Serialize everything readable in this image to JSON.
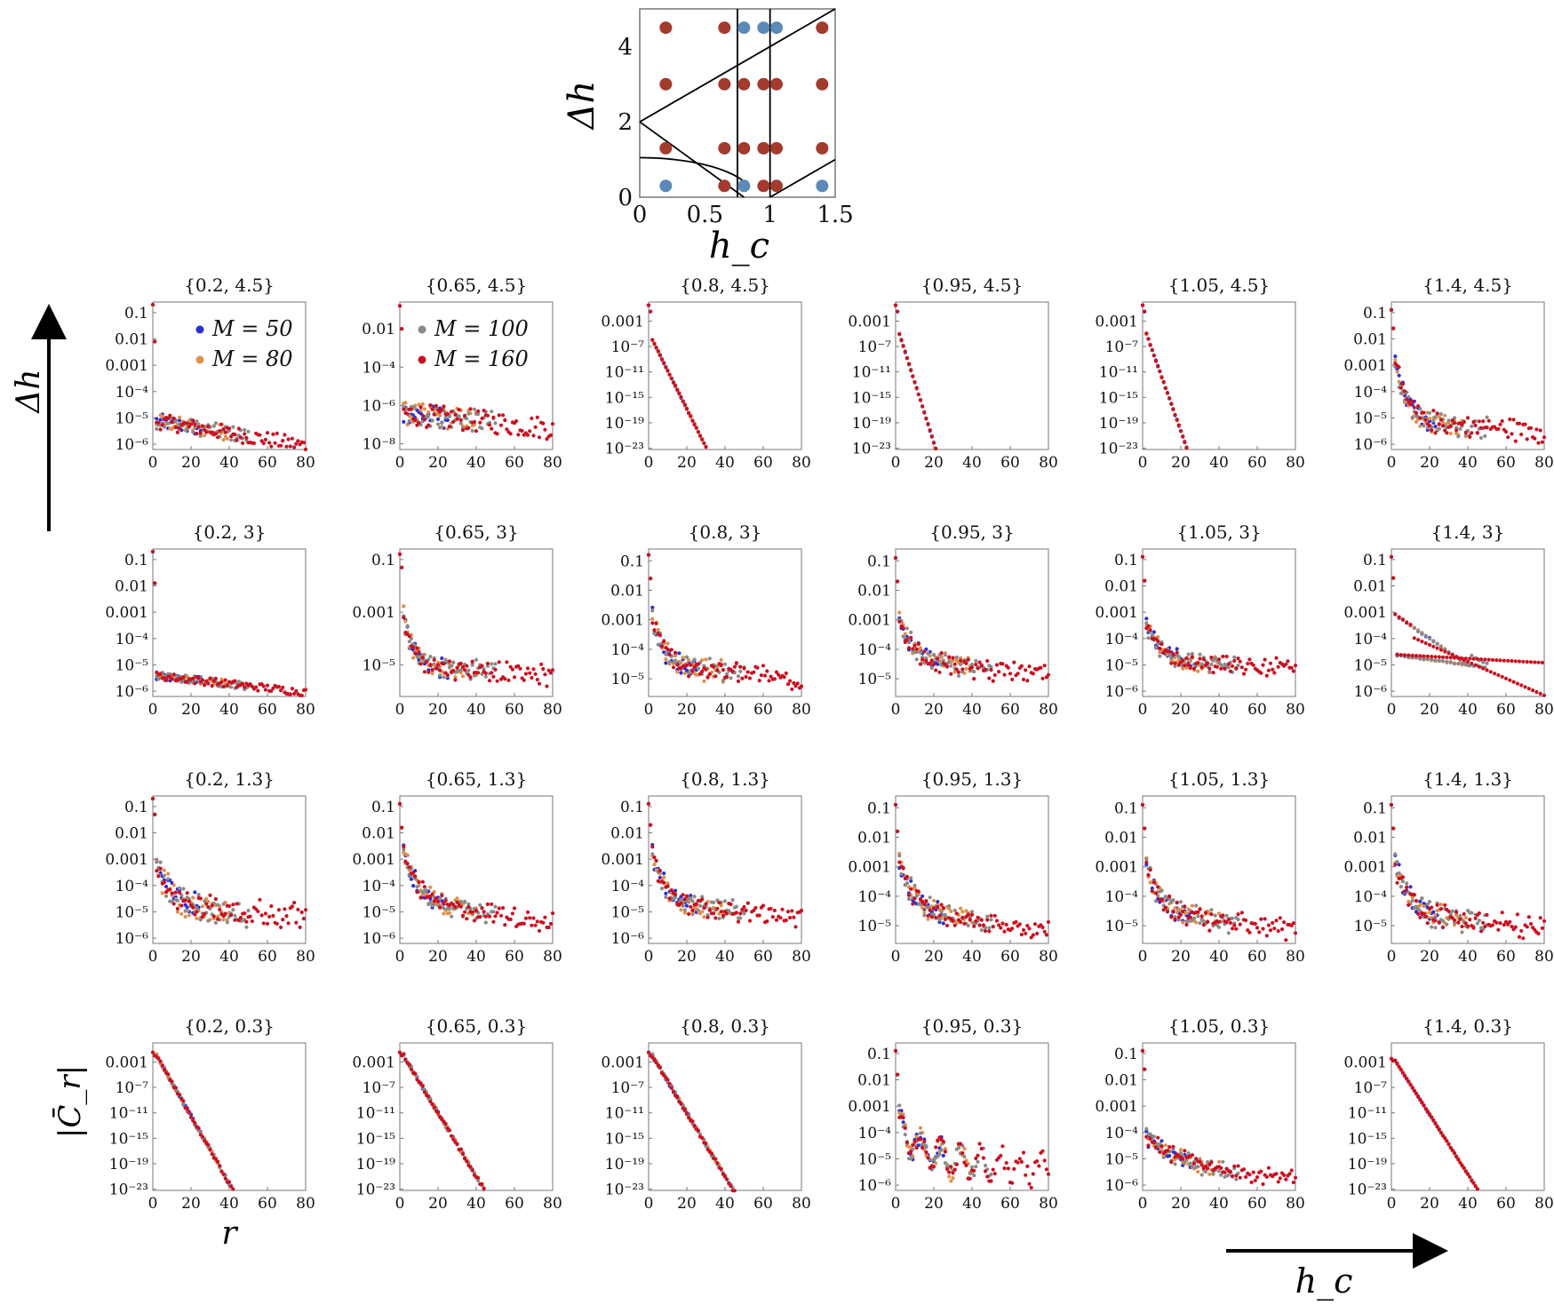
{
  "inset": {
    "xlabel": "h_c",
    "ylabel": "Δh",
    "x_ticks": [
      "0",
      "0.5",
      "1",
      "1.5"
    ],
    "y_ticks": [
      "0",
      "2",
      "4"
    ],
    "xlim": [
      0,
      1.5
    ],
    "ylim": [
      0,
      5
    ],
    "point_color_a": "#a33a2e",
    "point_color_b": "#5b89b8",
    "points": [
      {
        "hc": 0.2,
        "dh": 4.5,
        "c": "a"
      },
      {
        "hc": 0.65,
        "dh": 4.5,
        "c": "a"
      },
      {
        "hc": 0.8,
        "dh": 4.5,
        "c": "b"
      },
      {
        "hc": 0.95,
        "dh": 4.5,
        "c": "b"
      },
      {
        "hc": 1.05,
        "dh": 4.5,
        "c": "b"
      },
      {
        "hc": 1.4,
        "dh": 4.5,
        "c": "a"
      },
      {
        "hc": 0.2,
        "dh": 3,
        "c": "a"
      },
      {
        "hc": 0.65,
        "dh": 3,
        "c": "a"
      },
      {
        "hc": 0.8,
        "dh": 3,
        "c": "a"
      },
      {
        "hc": 0.95,
        "dh": 3,
        "c": "a"
      },
      {
        "hc": 1.05,
        "dh": 3,
        "c": "a"
      },
      {
        "hc": 1.4,
        "dh": 3,
        "c": "a"
      },
      {
        "hc": 0.2,
        "dh": 1.3,
        "c": "a"
      },
      {
        "hc": 0.65,
        "dh": 1.3,
        "c": "a"
      },
      {
        "hc": 0.8,
        "dh": 1.3,
        "c": "a"
      },
      {
        "hc": 0.95,
        "dh": 1.3,
        "c": "a"
      },
      {
        "hc": 1.05,
        "dh": 1.3,
        "c": "a"
      },
      {
        "hc": 1.4,
        "dh": 1.3,
        "c": "a"
      },
      {
        "hc": 0.2,
        "dh": 0.3,
        "c": "b"
      },
      {
        "hc": 0.65,
        "dh": 0.3,
        "c": "a"
      },
      {
        "hc": 0.8,
        "dh": 0.3,
        "c": "b"
      },
      {
        "hc": 0.95,
        "dh": 0.3,
        "c": "a"
      },
      {
        "hc": 1.05,
        "dh": 0.3,
        "c": "a"
      },
      {
        "hc": 1.4,
        "dh": 0.3,
        "c": "b"
      }
    ]
  },
  "labels": {
    "left_arrow": "Δh",
    "right_arrow": "h_c",
    "y_axis": "|C̄_r|",
    "x_axis": "r"
  },
  "legend": [
    {
      "label": "M = 50",
      "color": "#2a2fd6"
    },
    {
      "label": "M = 80",
      "color": "#e0904a"
    },
    {
      "label": "M = 100",
      "color": "#8a8a8a"
    },
    {
      "label": "M = 160",
      "color": "#cc1020"
    }
  ],
  "chart_data": {
    "type": "scatter",
    "x_ticks": [
      "0",
      "20",
      "40",
      "60",
      "80"
    ],
    "xlim": [
      0,
      80
    ],
    "series_names": [
      "M = 50",
      "M = 80",
      "M = 100",
      "M = 160"
    ],
    "rows": [
      [
        {
          "title": "{0.2, 4.5}",
          "ylim": [
            -6.2,
            -0.6
          ],
          "yticks": [
            [
              "0.1",
              -1
            ],
            [
              "0.01",
              -2
            ],
            [
              "0.001",
              -3
            ],
            [
              "10⁻⁴",
              -4
            ],
            [
              "10⁻⁵",
              -5
            ],
            [
              "10⁻⁶",
              -6
            ]
          ],
          "kind": "plateau",
          "a0": -0.7,
          "b0": -2.1,
          "c": -5.1,
          "tau": 0.8,
          "slope": -0.012,
          "noise": 0.3
        },
        {
          "title": "{0.65, 4.5}",
          "ylim": [
            -8.3,
            -0.6
          ],
          "yticks": [
            [
              "0.01",
              -2
            ],
            [
              "10⁻⁴",
              -4
            ],
            [
              "10⁻⁶",
              -6
            ],
            [
              "10⁻⁸",
              -8
            ]
          ],
          "kind": "plateau",
          "a0": -0.8,
          "b0": -2.0,
          "c": -6.4,
          "tau": 0.8,
          "slope": -0.01,
          "noise": 0.6
        },
        {
          "title": "{0.8, 4.5}",
          "ylim": [
            -23.2,
            0
          ],
          "yticks": [
            [
              "0.001",
              -3
            ],
            [
              "10⁻⁷",
              -7
            ],
            [
              "10⁻¹¹",
              -11
            ],
            [
              "10⁻¹⁵",
              -15
            ],
            [
              "10⁻¹⁹",
              -19
            ],
            [
              "10⁻²³",
              -23
            ]
          ],
          "kind": "exp",
          "a0": -0.5,
          "b0": -1.5,
          "start": -6.0,
          "slope": -0.6,
          "noise": 0.1
        },
        {
          "title": "{0.95, 4.5}",
          "ylim": [
            -23.2,
            0
          ],
          "yticks": [
            [
              "0.001",
              -3
            ],
            [
              "10⁻⁷",
              -7
            ],
            [
              "10⁻¹¹",
              -11
            ],
            [
              "10⁻¹⁵",
              -15
            ],
            [
              "10⁻¹⁹",
              -19
            ],
            [
              "10⁻²³",
              -23
            ]
          ],
          "kind": "exp",
          "a0": -0.5,
          "b0": -1.5,
          "start": -5.0,
          "slope": -0.95,
          "noise": 0.1
        },
        {
          "title": "{1.05, 4.5}",
          "ylim": [
            -23.2,
            0
          ],
          "yticks": [
            [
              "0.001",
              -3
            ],
            [
              "10⁻⁷",
              -7
            ],
            [
              "10⁻¹¹",
              -11
            ],
            [
              "10⁻¹⁵",
              -15
            ],
            [
              "10⁻¹⁹",
              -19
            ],
            [
              "10⁻²³",
              -23
            ]
          ],
          "kind": "exp",
          "a0": -0.5,
          "b0": -1.5,
          "start": -5.0,
          "slope": -0.85,
          "noise": 0.1
        },
        {
          "title": "{1.4, 4.5}",
          "ylim": [
            -6.2,
            -0.6
          ],
          "yticks": [
            [
              "0.1",
              -1
            ],
            [
              "0.01",
              -2
            ],
            [
              "0.001",
              -3
            ],
            [
              "10⁻⁴",
              -4
            ],
            [
              "10⁻⁵",
              -5
            ],
            [
              "10⁻⁶",
              -6
            ]
          ],
          "kind": "decay",
          "a0": -0.9,
          "b0": -1.6,
          "c": -5.1,
          "amp": 2.2,
          "tau": 6,
          "slope": -0.005,
          "noise": 0.35
        }
      ],
      [
        {
          "title": "{0.2, 3}",
          "ylim": [
            -6.2,
            -0.6
          ],
          "yticks": [
            [
              "0.1",
              -1
            ],
            [
              "0.01",
              -2
            ],
            [
              "0.001",
              -3
            ],
            [
              "10⁻⁴",
              -4
            ],
            [
              "10⁻⁵",
              -5
            ],
            [
              "10⁻⁶",
              -6
            ]
          ],
          "kind": "plateau",
          "a0": -0.7,
          "b0": -1.9,
          "c": -5.4,
          "tau": 0.8,
          "slope": -0.008,
          "noise": 0.15
        },
        {
          "title": "{0.65, 3}",
          "ylim": [
            -6.2,
            -0.6
          ],
          "yticks": [
            [
              "0.1",
              -1
            ],
            [
              "0.001",
              -3
            ],
            [
              "10⁻⁵",
              -5
            ]
          ],
          "kind": "decay",
          "a0": -0.8,
          "b0": -1.3,
          "c": -5.0,
          "amp": 1.9,
          "tau": 5,
          "slope": -0.005,
          "noise": 0.3
        },
        {
          "title": "{0.8, 3}",
          "ylim": [
            -5.6,
            -0.6
          ],
          "yticks": [
            [
              "0.1",
              -1
            ],
            [
              "0.01",
              -2
            ],
            [
              "0.001",
              -3
            ],
            [
              "10⁻⁴",
              -4
            ],
            [
              "10⁻⁵",
              -5
            ]
          ],
          "kind": "decay",
          "a0": -0.8,
          "b0": -1.6,
          "c": -4.5,
          "amp": 1.6,
          "tau": 6,
          "slope": -0.007,
          "noise": 0.3
        },
        {
          "title": "{0.95, 3}",
          "ylim": [
            -5.6,
            -0.6
          ],
          "yticks": [
            [
              "0.1",
              -1
            ],
            [
              "0.01",
              -2
            ],
            [
              "0.001",
              -3
            ],
            [
              "10⁻⁴",
              -4
            ],
            [
              "10⁻⁵",
              -5
            ]
          ],
          "kind": "decay",
          "a0": -0.9,
          "b0": -1.7,
          "c": -4.4,
          "amp": 1.4,
          "tau": 8,
          "slope": -0.006,
          "noise": 0.25
        },
        {
          "title": "{1.05, 3}",
          "ylim": [
            -6.2,
            -0.6
          ],
          "yticks": [
            [
              "0.1",
              -1
            ],
            [
              "0.01",
              -2
            ],
            [
              "0.001",
              -3
            ],
            [
              "10⁻⁴",
              -4
            ],
            [
              "10⁻⁵",
              -5
            ],
            [
              "10⁻⁶",
              -6
            ]
          ],
          "kind": "decay",
          "a0": -0.9,
          "b0": -1.8,
          "c": -4.9,
          "amp": 1.4,
          "tau": 8,
          "slope": -0.003,
          "noise": 0.25
        },
        {
          "title": "{1.4, 3}",
          "ylim": [
            -6.2,
            -0.6
          ],
          "yticks": [
            [
              "0.1",
              -1
            ],
            [
              "0.01",
              -2
            ],
            [
              "0.001",
              -3
            ],
            [
              "10⁻⁴",
              -4
            ],
            [
              "10⁻⁵",
              -5
            ],
            [
              "10⁻⁶",
              -6
            ]
          ],
          "kind": "split",
          "a0": -0.9,
          "b0": -1.7,
          "noise": 0.03
        }
      ],
      [
        {
          "title": "{0.2, 1.3}",
          "ylim": [
            -6.2,
            -0.6
          ],
          "yticks": [
            [
              "0.1",
              -1
            ],
            [
              "0.01",
              -2
            ],
            [
              "0.001",
              -3
            ],
            [
              "10⁻⁴",
              -4
            ],
            [
              "10⁻⁵",
              -5
            ],
            [
              "10⁻⁶",
              -6
            ]
          ],
          "kind": "decay",
          "a0": -0.7,
          "b0": -1.3,
          "c": -4.8,
          "amp": 1.6,
          "tau": 8,
          "slope": -0.005,
          "noise": 0.45
        },
        {
          "title": "{0.65, 1.3}",
          "ylim": [
            -6.2,
            -0.6
          ],
          "yticks": [
            [
              "0.1",
              -1
            ],
            [
              "0.01",
              -2
            ],
            [
              "0.001",
              -3
            ],
            [
              "10⁻⁴",
              -4
            ],
            [
              "10⁻⁵",
              -5
            ],
            [
              "10⁻⁶",
              -6
            ]
          ],
          "kind": "decay",
          "a0": -0.9,
          "b0": -1.8,
          "c": -4.6,
          "amp": 2.0,
          "tau": 7,
          "slope": -0.01,
          "noise": 0.3
        },
        {
          "title": "{0.8, 1.3}",
          "ylim": [
            -6.2,
            -0.6
          ],
          "yticks": [
            [
              "0.1",
              -1
            ],
            [
              "0.01",
              -2
            ],
            [
              "0.001",
              -3
            ],
            [
              "10⁻⁴",
              -4
            ],
            [
              "10⁻⁵",
              -5
            ],
            [
              "10⁻⁶",
              -6
            ]
          ],
          "kind": "decay",
          "a0": -0.9,
          "b0": -1.7,
          "c": -4.6,
          "amp": 1.9,
          "tau": 6,
          "slope": -0.008,
          "noise": 0.3
        },
        {
          "title": "{0.95, 1.3}",
          "ylim": [
            -5.6,
            -0.6
          ],
          "yticks": [
            [
              "0.1",
              -1
            ],
            [
              "0.01",
              -2
            ],
            [
              "0.001",
              -3
            ],
            [
              "10⁻⁴",
              -4
            ],
            [
              "10⁻⁵",
              -5
            ]
          ],
          "kind": "decay",
          "a0": -0.9,
          "b0": -1.8,
          "c": -4.4,
          "amp": 1.6,
          "tau": 7,
          "slope": -0.01,
          "noise": 0.3
        },
        {
          "title": "{1.05, 1.3}",
          "ylim": [
            -5.6,
            -0.6
          ],
          "yticks": [
            [
              "0.1",
              -1
            ],
            [
              "0.01",
              -2
            ],
            [
              "0.001",
              -3
            ],
            [
              "10⁻⁴",
              -4
            ],
            [
              "10⁻⁵",
              -5
            ]
          ],
          "kind": "decay",
          "a0": -0.9,
          "b0": -1.7,
          "c": -4.5,
          "amp": 1.6,
          "tau": 7,
          "slope": -0.008,
          "noise": 0.3
        },
        {
          "title": "{1.4, 1.3}",
          "ylim": [
            -5.6,
            -0.6
          ],
          "yticks": [
            [
              "0.1",
              -1
            ],
            [
              "0.01",
              -2
            ],
            [
              "0.001",
              -3
            ],
            [
              "10⁻⁴",
              -4
            ],
            [
              "10⁻⁵",
              -5
            ]
          ],
          "kind": "decay",
          "a0": -0.9,
          "b0": -1.7,
          "c": -4.5,
          "amp": 1.6,
          "tau": 7,
          "slope": -0.008,
          "noise": 0.35
        }
      ],
      [
        {
          "title": "{0.2, 0.3}",
          "ylim": [
            -23.2,
            0
          ],
          "yticks": [
            [
              "0.001",
              -3
            ],
            [
              "10⁻⁷",
              -7
            ],
            [
              "10⁻¹¹",
              -11
            ],
            [
              "10⁻¹⁵",
              -15
            ],
            [
              "10⁻¹⁹",
              -19
            ],
            [
              "10⁻²³",
              -23
            ]
          ],
          "kind": "exp",
          "a0": -1.5,
          "b0": -2.0,
          "start": -2.0,
          "slope": -0.53,
          "noise": 0.3
        },
        {
          "title": "{0.65, 0.3}",
          "ylim": [
            -23.2,
            0
          ],
          "yticks": [
            [
              "0.001",
              -3
            ],
            [
              "10⁻⁷",
              -7
            ],
            [
              "10⁻¹¹",
              -11
            ],
            [
              "10⁻¹⁵",
              -15
            ],
            [
              "10⁻¹⁹",
              -19
            ],
            [
              "10⁻²³",
              -23
            ]
          ],
          "kind": "exp",
          "a0": -1.5,
          "b0": -2.0,
          "start": -2.0,
          "slope": -0.5,
          "noise": 0.3
        },
        {
          "title": "{0.8, 0.3}",
          "ylim": [
            -23.2,
            0
          ],
          "yticks": [
            [
              "0.001",
              -3
            ],
            [
              "10⁻⁷",
              -7
            ],
            [
              "10⁻¹¹",
              -11
            ],
            [
              "10⁻¹⁵",
              -15
            ],
            [
              "10⁻¹⁹",
              -19
            ],
            [
              "10⁻²³",
              -23
            ]
          ],
          "kind": "exp",
          "a0": -1.5,
          "b0": -2.0,
          "start": -2.0,
          "slope": -0.5,
          "noise": 0.3
        },
        {
          "title": "{0.95, 0.3}",
          "ylim": [
            -6.2,
            -0.6
          ],
          "yticks": [
            [
              "0.1",
              -1
            ],
            [
              "0.01",
              -2
            ],
            [
              "0.001",
              -3
            ],
            [
              "10⁻⁴",
              -4
            ],
            [
              "10⁻⁵",
              -5
            ],
            [
              "10⁻⁶",
              -6
            ]
          ],
          "kind": "osc",
          "a0": -0.9,
          "b0": -1.8,
          "c": -5.0,
          "amp": 1.3,
          "tau": 10,
          "slope": -0.005,
          "noise": 0.35
        },
        {
          "title": "{1.05, 0.3}",
          "ylim": [
            -6.2,
            -0.6
          ],
          "yticks": [
            [
              "0.1",
              -1
            ],
            [
              "0.01",
              -2
            ],
            [
              "0.001",
              -3
            ],
            [
              "10⁻⁴",
              -4
            ],
            [
              "10⁻⁵",
              -5
            ],
            [
              "10⁻⁶",
              -6
            ]
          ],
          "kind": "decay",
          "a0": -0.9,
          "b0": -1.6,
          "c": -5.6,
          "amp": 1.4,
          "tau": 25,
          "slope": -0.002,
          "noise": 0.25
        },
        {
          "title": "{1.4, 0.3}",
          "ylim": [
            -23.2,
            0
          ],
          "yticks": [
            [
              "0.001",
              -3
            ],
            [
              "10⁻⁷",
              -7
            ],
            [
              "10⁻¹¹",
              -11
            ],
            [
              "10⁻¹⁵",
              -15
            ],
            [
              "10⁻¹⁹",
              -19
            ],
            [
              "10⁻²³",
              -23
            ]
          ],
          "kind": "exp",
          "a0": -2.5,
          "b0": -2.8,
          "start": -2.8,
          "slope": -0.47,
          "noise": 0.08
        }
      ]
    ]
  }
}
